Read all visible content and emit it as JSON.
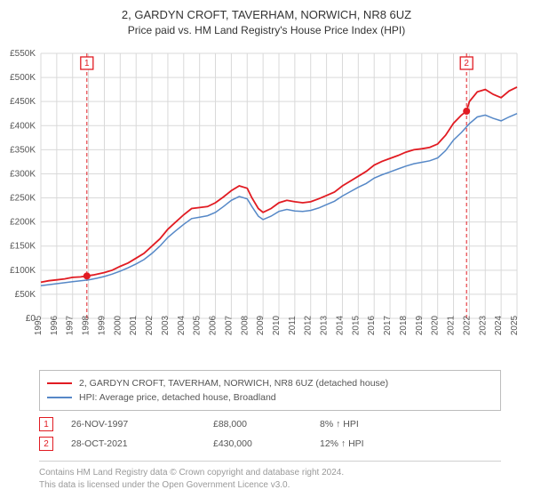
{
  "title": {
    "line1": "2, GARDYN CROFT, TAVERHAM, NORWICH, NR8 6UZ",
    "line2": "Price paid vs. HM Land Registry's House Price Index (HPI)",
    "fontsize_line1": 13,
    "fontsize_line2": 12,
    "color": "#333333"
  },
  "chart": {
    "type": "line",
    "background_color": "#ffffff",
    "grid_color": "#d9d9d9",
    "axis_text_color": "#555555",
    "axis_fontsize": 10,
    "xlim": [
      1995,
      2025
    ],
    "ylim": [
      0,
      550000
    ],
    "x_ticks": [
      1995,
      1996,
      1997,
      1998,
      1999,
      2000,
      2001,
      2002,
      2003,
      2004,
      2005,
      2006,
      2007,
      2008,
      2009,
      2010,
      2011,
      2012,
      2013,
      2014,
      2015,
      2016,
      2017,
      2018,
      2019,
      2020,
      2021,
      2022,
      2023,
      2024,
      2025
    ],
    "y_ticks": [
      0,
      50000,
      100000,
      150000,
      200000,
      250000,
      300000,
      350000,
      400000,
      450000,
      500000,
      550000
    ],
    "y_tick_labels": [
      "£0",
      "£50K",
      "£100K",
      "£150K",
      "£200K",
      "£250K",
      "£300K",
      "£350K",
      "£400K",
      "£450K",
      "£500K",
      "£550K"
    ],
    "series": [
      {
        "id": "price_paid",
        "label": "2, GARDYN CROFT, TAVERHAM, NORWICH, NR8 6UZ (detached house)",
        "color": "#e11b22",
        "line_width": 1.8,
        "points": [
          [
            1995,
            75000
          ],
          [
            1995.5,
            78000
          ],
          [
            1996,
            80000
          ],
          [
            1996.5,
            82000
          ],
          [
            1997,
            85000
          ],
          [
            1997.5,
            86000
          ],
          [
            1997.9,
            88000
          ],
          [
            1998.3,
            90000
          ],
          [
            1999,
            95000
          ],
          [
            1999.5,
            100000
          ],
          [
            2000,
            108000
          ],
          [
            2000.5,
            115000
          ],
          [
            2001,
            125000
          ],
          [
            2001.5,
            135000
          ],
          [
            2002,
            150000
          ],
          [
            2002.5,
            165000
          ],
          [
            2003,
            185000
          ],
          [
            2003.5,
            200000
          ],
          [
            2004,
            215000
          ],
          [
            2004.5,
            228000
          ],
          [
            2005,
            230000
          ],
          [
            2005.5,
            232000
          ],
          [
            2006,
            240000
          ],
          [
            2006.5,
            252000
          ],
          [
            2007,
            265000
          ],
          [
            2007.5,
            275000
          ],
          [
            2008,
            270000
          ],
          [
            2008.3,
            250000
          ],
          [
            2008.7,
            228000
          ],
          [
            2009,
            220000
          ],
          [
            2009.5,
            228000
          ],
          [
            2010,
            240000
          ],
          [
            2010.5,
            245000
          ],
          [
            2011,
            242000
          ],
          [
            2011.5,
            240000
          ],
          [
            2012,
            242000
          ],
          [
            2012.5,
            248000
          ],
          [
            2013,
            255000
          ],
          [
            2013.5,
            262000
          ],
          [
            2014,
            275000
          ],
          [
            2014.5,
            285000
          ],
          [
            2015,
            295000
          ],
          [
            2015.5,
            305000
          ],
          [
            2016,
            318000
          ],
          [
            2016.5,
            326000
          ],
          [
            2017,
            332000
          ],
          [
            2017.5,
            338000
          ],
          [
            2018,
            345000
          ],
          [
            2018.5,
            350000
          ],
          [
            2019,
            352000
          ],
          [
            2019.5,
            355000
          ],
          [
            2020,
            362000
          ],
          [
            2020.5,
            380000
          ],
          [
            2021,
            405000
          ],
          [
            2021.5,
            422000
          ],
          [
            2021.82,
            430000
          ],
          [
            2022,
            450000
          ],
          [
            2022.5,
            470000
          ],
          [
            2023,
            475000
          ],
          [
            2023.5,
            465000
          ],
          [
            2024,
            458000
          ],
          [
            2024.5,
            472000
          ],
          [
            2025,
            480000
          ]
        ]
      },
      {
        "id": "hpi",
        "label": "HPI: Average price, detached house, Broadland",
        "color": "#5688c7",
        "line_width": 1.5,
        "points": [
          [
            1995,
            68000
          ],
          [
            1995.5,
            70000
          ],
          [
            1996,
            72000
          ],
          [
            1996.5,
            74000
          ],
          [
            1997,
            76000
          ],
          [
            1997.5,
            78000
          ],
          [
            1998,
            80000
          ],
          [
            1998.5,
            83000
          ],
          [
            1999,
            87000
          ],
          [
            1999.5,
            92000
          ],
          [
            2000,
            98000
          ],
          [
            2000.5,
            105000
          ],
          [
            2001,
            113000
          ],
          [
            2001.5,
            122000
          ],
          [
            2002,
            135000
          ],
          [
            2002.5,
            150000
          ],
          [
            2003,
            168000
          ],
          [
            2003.5,
            182000
          ],
          [
            2004,
            195000
          ],
          [
            2004.5,
            207000
          ],
          [
            2005,
            210000
          ],
          [
            2005.5,
            213000
          ],
          [
            2006,
            220000
          ],
          [
            2006.5,
            232000
          ],
          [
            2007,
            245000
          ],
          [
            2007.5,
            253000
          ],
          [
            2008,
            248000
          ],
          [
            2008.3,
            232000
          ],
          [
            2008.7,
            212000
          ],
          [
            2009,
            205000
          ],
          [
            2009.5,
            212000
          ],
          [
            2010,
            222000
          ],
          [
            2010.5,
            226000
          ],
          [
            2011,
            223000
          ],
          [
            2011.5,
            222000
          ],
          [
            2012,
            224000
          ],
          [
            2012.5,
            229000
          ],
          [
            2013,
            236000
          ],
          [
            2013.5,
            243000
          ],
          [
            2014,
            254000
          ],
          [
            2014.5,
            263000
          ],
          [
            2015,
            272000
          ],
          [
            2015.5,
            280000
          ],
          [
            2016,
            291000
          ],
          [
            2016.5,
            298000
          ],
          [
            2017,
            304000
          ],
          [
            2017.5,
            310000
          ],
          [
            2018,
            316000
          ],
          [
            2018.5,
            321000
          ],
          [
            2019,
            324000
          ],
          [
            2019.5,
            327000
          ],
          [
            2020,
            333000
          ],
          [
            2020.5,
            348000
          ],
          [
            2021,
            370000
          ],
          [
            2021.5,
            386000
          ],
          [
            2022,
            404000
          ],
          [
            2022.5,
            418000
          ],
          [
            2023,
            422000
          ],
          [
            2023.5,
            415000
          ],
          [
            2024,
            410000
          ],
          [
            2024.5,
            418000
          ],
          [
            2025,
            425000
          ]
        ]
      }
    ],
    "vertical_markers": [
      {
        "id": 1,
        "x": 1997.9,
        "color": "#e11b22",
        "box_label": "1",
        "label_y_top": true,
        "dot_y": 88000
      },
      {
        "id": 2,
        "x": 2021.82,
        "color": "#e11b22",
        "box_label": "2",
        "label_y_top": true,
        "dot_y": 430000
      }
    ],
    "marker_dot_color": "#e11b22",
    "marker_dot_radius": 4
  },
  "legend": {
    "border_color": "#bdbdbd",
    "text_color": "#555555",
    "fontsize": 10.5,
    "items": [
      {
        "color": "#e11b22",
        "label": "2, GARDYN CROFT, TAVERHAM, NORWICH, NR8 6UZ (detached house)"
      },
      {
        "color": "#5688c7",
        "label": "HPI: Average price, detached house, Broadland"
      }
    ]
  },
  "events": {
    "text_color": "#555555",
    "fontsize": 10.5,
    "rows": [
      {
        "num": "1",
        "box_color": "#e11b22",
        "date": "26-NOV-1997",
        "price": "£88,000",
        "note": "8% ↑ HPI"
      },
      {
        "num": "2",
        "box_color": "#e11b22",
        "date": "28-OCT-2021",
        "price": "£430,000",
        "note": "12% ↑ HPI"
      }
    ]
  },
  "footer": {
    "line1": "Contains HM Land Registry data © Crown copyright and database right 2024.",
    "line2": "This data is licensed under the Open Government Licence v3.0.",
    "color": "#9a9a9a",
    "fontsize": 10,
    "border_color": "#d0d0d0"
  }
}
